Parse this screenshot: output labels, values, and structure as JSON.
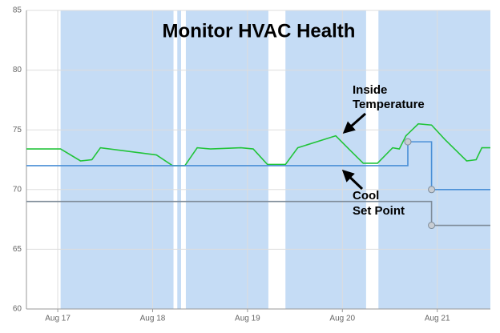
{
  "chart_data": {
    "type": "line",
    "title": "Monitor HVAC Health",
    "xlim": [
      16.67,
      21.56
    ],
    "ylim": [
      60,
      85
    ],
    "xticks": [
      {
        "value": 17,
        "label": "Aug 17"
      },
      {
        "value": 18,
        "label": "Aug 18"
      },
      {
        "value": 19,
        "label": "Aug 19"
      },
      {
        "value": 20,
        "label": "Aug 20"
      },
      {
        "value": 21,
        "label": "Aug 21"
      }
    ],
    "yticks": [
      60,
      65,
      70,
      75,
      80,
      85
    ],
    "grid": true,
    "bands": {
      "color": "#c5dcf5",
      "ranges": [
        [
          17.03,
          18.22
        ],
        [
          18.26,
          18.3
        ],
        [
          18.35,
          19.22
        ],
        [
          19.4,
          20.25
        ],
        [
          20.38,
          21.56
        ]
      ]
    },
    "series": [
      {
        "color": "#22c43a",
        "markers": false,
        "x": [
          16.67,
          17.03,
          17.24,
          17.36,
          17.45,
          18.04,
          18.21,
          18.34,
          18.47,
          18.61,
          18.93,
          19.06,
          19.21,
          19.4,
          19.53,
          19.93,
          20.08,
          20.22,
          20.37,
          20.53,
          20.6,
          20.67,
          20.8,
          20.94,
          21.08,
          21.31,
          21.41,
          21.47,
          21.56
        ],
        "values": [
          73.4,
          73.4,
          72.4,
          72.5,
          73.5,
          72.9,
          72.0,
          72.0,
          73.5,
          73.4,
          73.5,
          73.4,
          72.1,
          72.1,
          73.5,
          74.5,
          73.3,
          72.2,
          72.2,
          73.5,
          73.4,
          74.5,
          75.5,
          75.4,
          74.2,
          72.4,
          72.5,
          73.5,
          73.5
        ]
      },
      {
        "color": "#4a8fd6",
        "markers": true,
        "x": [
          16.67,
          20.69,
          20.69,
          20.94,
          20.94,
          21.56
        ],
        "values": [
          72,
          72,
          74,
          74,
          70,
          70
        ]
      },
      {
        "color": "#7f8c99",
        "markers": true,
        "x": [
          16.67,
          20.94,
          20.94,
          21.56
        ],
        "values": [
          69,
          69,
          67,
          67
        ]
      }
    ],
    "annotations": [
      {
        "lines": [
          "Inside",
          "Temperature"
        ]
      },
      {
        "lines": [
          "Cool",
          "Set Point"
        ]
      }
    ]
  }
}
